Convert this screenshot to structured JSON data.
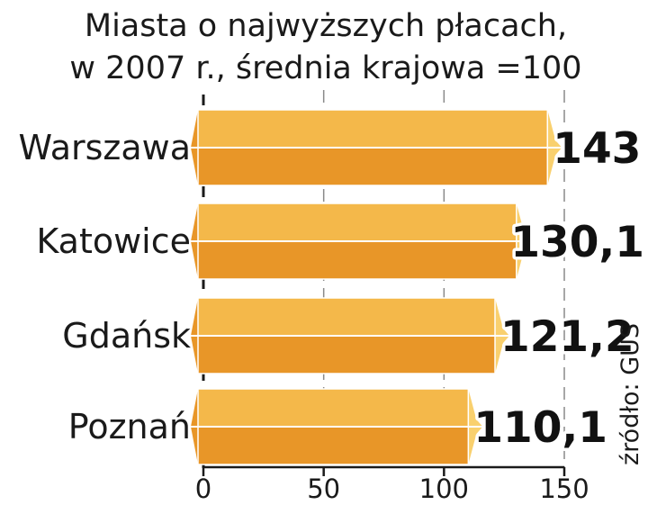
{
  "chart_data": {
    "type": "bar",
    "orientation": "horizontal",
    "title": "Miasta o najwyższych płacach,",
    "subtitle": "w 2007 r., średnia krajowa =100",
    "categories": [
      "Warszawa",
      "Katowice",
      "Gdańsk",
      "Poznań"
    ],
    "values": [
      143,
      130.1,
      121.2,
      110.1
    ],
    "value_labels": [
      "143",
      "130,1",
      "121,2",
      "110,1"
    ],
    "xlim": [
      0,
      150
    ],
    "ticks": [
      0,
      50,
      100,
      150
    ],
    "tick_labels": [
      "0",
      "50",
      "100",
      "150"
    ],
    "grid": true,
    "source": "źródło: GUS"
  },
  "colors": {
    "bar_top": "#f4b84a",
    "bar_bottom": "#e89628",
    "bar_cap": "#f9d06e",
    "grid": "#8a8a8a",
    "axis": "#1a1a1a"
  }
}
